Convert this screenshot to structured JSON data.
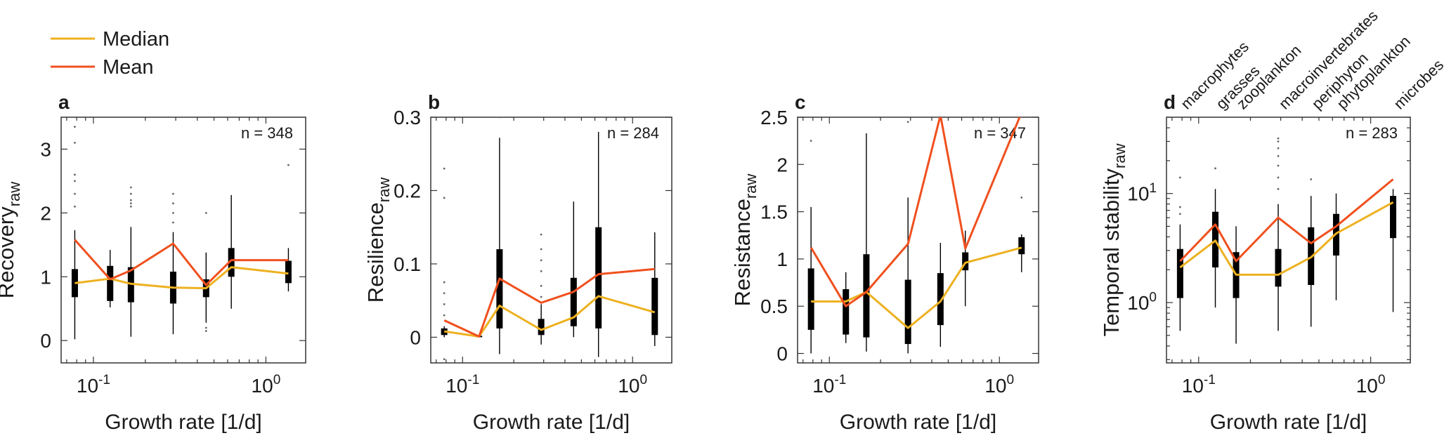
{
  "colors": {
    "median": "#EDB120",
    "mean": "#F0501E",
    "box": "#000000",
    "outlier": "#666666",
    "axis": "#333333"
  },
  "legend": {
    "median_label": "Median",
    "mean_label": "Mean"
  },
  "category_labels": [
    "macrophytes",
    "grasses",
    "zooplankton",
    "macroinvertebrates",
    "periphyton",
    "phytoplankton",
    "microbes"
  ],
  "chart_data": [
    {
      "type": "box",
      "panel_label": "a",
      "n_text": "n = 348",
      "xlabel": "Growth rate [1/d]",
      "ylabel_main": "Recovery",
      "ylabel_sub": "raw",
      "xscale": "log",
      "xlim": [
        0.065,
        1.7
      ],
      "xticks": [
        {
          "v": 0.1,
          "base": "10",
          "exp": "-1"
        },
        {
          "v": 1,
          "base": "10",
          "exp": "0"
        }
      ],
      "yscale": "linear",
      "ylim": [
        -0.35,
        3.5
      ],
      "yticks": [
        {
          "v": 0,
          "label": "0"
        },
        {
          "v": 1,
          "label": "1"
        },
        {
          "v": 2,
          "label": "2"
        },
        {
          "v": 3,
          "label": "3"
        }
      ],
      "x": [
        0.078,
        0.125,
        0.165,
        0.29,
        0.45,
        0.63,
        1.35
      ],
      "boxes": [
        {
          "x": 0.078,
          "q1": 0.68,
          "q3": 1.12,
          "wlo": 0.02,
          "whi": 1.73,
          "out": [
            2.1,
            2.3,
            2.5,
            2.6,
            3.1,
            3.35
          ]
        },
        {
          "x": 0.125,
          "q1": 0.62,
          "q3": 1.17,
          "wlo": 0.52,
          "whi": 1.42,
          "out": []
        },
        {
          "x": 0.165,
          "q1": 0.6,
          "q3": 1.15,
          "wlo": 0.06,
          "whi": 1.78,
          "out": [
            2.1,
            2.15,
            2.2,
            2.3,
            2.4
          ]
        },
        {
          "x": 0.29,
          "q1": 0.58,
          "q3": 1.08,
          "wlo": 0.1,
          "whi": 1.7,
          "out": [
            1.85,
            2.0,
            2.15,
            2.3
          ]
        },
        {
          "x": 0.45,
          "q1": 0.68,
          "q3": 0.96,
          "wlo": 0.28,
          "whi": 1.38,
          "out": [
            0.15,
            0.2,
            2.0
          ]
        },
        {
          "x": 0.63,
          "q1": 1.0,
          "q3": 1.45,
          "wlo": 0.5,
          "whi": 2.28,
          "out": []
        },
        {
          "x": 1.35,
          "q1": 0.9,
          "q3": 1.25,
          "wlo": 0.77,
          "whi": 1.45,
          "out": [
            2.75
          ]
        }
      ],
      "series": [
        {
          "name": "Median",
          "values": [
            0.9,
            0.97,
            0.89,
            0.83,
            0.82,
            1.15,
            1.05
          ]
        },
        {
          "name": "Mean",
          "values": [
            1.58,
            0.96,
            1.1,
            1.52,
            0.87,
            1.26,
            1.26
          ]
        }
      ]
    },
    {
      "type": "box",
      "panel_label": "b",
      "n_text": "n = 284",
      "xlabel": "Growth rate [1/d]",
      "ylabel_main": "Resilience",
      "ylabel_sub": "raw",
      "xscale": "log",
      "xlim": [
        0.065,
        1.7
      ],
      "xticks": [
        {
          "v": 0.1,
          "base": "10",
          "exp": "-1"
        },
        {
          "v": 1,
          "base": "10",
          "exp": "0"
        }
      ],
      "yscale": "linear",
      "ylim": [
        -0.035,
        0.3
      ],
      "yticks": [
        {
          "v": 0,
          "label": "0"
        },
        {
          "v": 0.1,
          "label": "0.1"
        },
        {
          "v": 0.2,
          "label": "0.2"
        },
        {
          "v": 0.3,
          "label": "0.3"
        }
      ],
      "x": [
        0.078,
        0.125,
        0.165,
        0.29,
        0.45,
        0.63,
        1.35
      ],
      "boxes": [
        {
          "x": 0.078,
          "q1": 0.003,
          "q3": 0.012,
          "wlo": 0.0,
          "whi": 0.015,
          "out": [
            -0.03,
            0.03,
            0.045,
            0.06,
            0.075,
            0.19,
            0.23
          ]
        },
        {
          "x": 0.125,
          "q1": 0.0,
          "q3": 0.002,
          "wlo": 0.0,
          "whi": 0.003,
          "out": []
        },
        {
          "x": 0.165,
          "q1": 0.012,
          "q3": 0.12,
          "wlo": -0.023,
          "whi": 0.272,
          "out": [
            0.3
          ]
        },
        {
          "x": 0.29,
          "q1": 0.003,
          "q3": 0.025,
          "wlo": -0.01,
          "whi": 0.045,
          "out": [
            0.055,
            0.07,
            0.09,
            0.105,
            0.12,
            0.14
          ]
        },
        {
          "x": 0.45,
          "q1": 0.015,
          "q3": 0.081,
          "wlo": 0.0,
          "whi": 0.185,
          "out": []
        },
        {
          "x": 0.63,
          "q1": 0.012,
          "q3": 0.15,
          "wlo": -0.027,
          "whi": 0.28,
          "out": []
        },
        {
          "x": 1.35,
          "q1": 0.003,
          "q3": 0.081,
          "wlo": -0.012,
          "whi": 0.143,
          "out": []
        }
      ],
      "series": [
        {
          "name": "Median",
          "values": [
            0.008,
            0.001,
            0.043,
            0.01,
            0.027,
            0.056,
            0.034
          ]
        },
        {
          "name": "Mean",
          "values": [
            0.023,
            0.001,
            0.08,
            0.047,
            0.062,
            0.086,
            0.093
          ]
        }
      ]
    },
    {
      "type": "box",
      "panel_label": "c",
      "n_text": "n = 347",
      "xlabel": "Growth rate [1/d]",
      "ylabel_main": "Resistance",
      "ylabel_sub": "raw",
      "xscale": "log",
      "xlim": [
        0.065,
        1.7
      ],
      "xticks": [
        {
          "v": 0.1,
          "base": "10",
          "exp": "-1"
        },
        {
          "v": 1,
          "base": "10",
          "exp": "0"
        }
      ],
      "yscale": "linear",
      "ylim": [
        -0.1,
        2.5
      ],
      "yticks": [
        {
          "v": 0,
          "label": "0"
        },
        {
          "v": 0.5,
          "label": "0.5"
        },
        {
          "v": 1,
          "label": "1"
        },
        {
          "v": 1.5,
          "label": "1.5"
        },
        {
          "v": 2,
          "label": "2"
        },
        {
          "v": 2.5,
          "label": "2.5"
        }
      ],
      "x": [
        0.078,
        0.125,
        0.165,
        0.29,
        0.45,
        0.63,
        1.35
      ],
      "boxes": [
        {
          "x": 0.078,
          "q1": 0.25,
          "q3": 0.9,
          "wlo": 0.0,
          "whi": 1.55,
          "out": [
            2.25
          ]
        },
        {
          "x": 0.125,
          "q1": 0.2,
          "q3": 0.68,
          "wlo": 0.11,
          "whi": 0.86,
          "out": []
        },
        {
          "x": 0.165,
          "q1": 0.17,
          "q3": 1.05,
          "wlo": 0.02,
          "whi": 2.33,
          "out": []
        },
        {
          "x": 0.29,
          "q1": 0.1,
          "q3": 0.78,
          "wlo": 0.0,
          "whi": 1.65,
          "out": [
            2.45
          ]
        },
        {
          "x": 0.45,
          "q1": 0.3,
          "q3": 0.85,
          "wlo": 0.07,
          "whi": 1.17,
          "out": []
        },
        {
          "x": 0.63,
          "q1": 0.88,
          "q3": 1.07,
          "wlo": 0.5,
          "whi": 1.3,
          "out": []
        },
        {
          "x": 1.35,
          "q1": 1.05,
          "q3": 1.23,
          "wlo": 0.86,
          "whi": 1.26,
          "out": [
            1.65
          ]
        }
      ],
      "series": [
        {
          "name": "Median",
          "values": [
            0.55,
            0.55,
            0.65,
            0.27,
            0.55,
            0.96,
            1.12
          ]
        },
        {
          "name": "Mean",
          "values": [
            1.12,
            0.5,
            0.65,
            1.16,
            2.52,
            1.11,
            2.55
          ]
        }
      ]
    },
    {
      "type": "box",
      "panel_label": "d",
      "n_text": "n = 283",
      "xlabel": "Growth rate [1/d]",
      "ylabel_main": "Temporal stability",
      "ylabel_sub": "raw",
      "xscale": "log",
      "xlim": [
        0.065,
        1.7
      ],
      "xticks": [
        {
          "v": 0.1,
          "base": "10",
          "exp": "-1"
        },
        {
          "v": 1,
          "base": "10",
          "exp": "0"
        }
      ],
      "yscale": "log",
      "ylim": [
        0.28,
        50
      ],
      "yticks": [
        {
          "v": 1,
          "base": "10",
          "exp": "0"
        },
        {
          "v": 10,
          "base": "10",
          "exp": "1"
        }
      ],
      "x": [
        0.078,
        0.125,
        0.165,
        0.29,
        0.45,
        0.63,
        1.35
      ],
      "boxes": [
        {
          "x": 0.078,
          "q1": 1.1,
          "q3": 3.1,
          "wlo": 0.55,
          "whi": 5.2,
          "out": [
            6.5,
            7.5,
            14
          ]
        },
        {
          "x": 0.125,
          "q1": 2.1,
          "q3": 6.8,
          "wlo": 0.9,
          "whi": 11,
          "out": [
            17
          ]
        },
        {
          "x": 0.165,
          "q1": 1.1,
          "q3": 2.9,
          "wlo": 0.42,
          "whi": 5,
          "out": []
        },
        {
          "x": 0.29,
          "q1": 1.4,
          "q3": 3.1,
          "wlo": 0.55,
          "whi": 8,
          "out": [
            11,
            14,
            18,
            22,
            26,
            30,
            32
          ]
        },
        {
          "x": 0.45,
          "q1": 1.45,
          "q3": 4.9,
          "wlo": 0.6,
          "whi": 9.5,
          "out": [
            13.5
          ]
        },
        {
          "x": 0.63,
          "q1": 2.7,
          "q3": 6.5,
          "wlo": 1.05,
          "whi": 10,
          "out": []
        },
        {
          "x": 1.35,
          "q1": 3.9,
          "q3": 9.5,
          "wlo": 0.82,
          "whi": 11,
          "out": []
        }
      ],
      "series": [
        {
          "name": "Median",
          "values": [
            2.1,
            3.7,
            1.8,
            1.8,
            2.6,
            4.3,
            8.3
          ]
        },
        {
          "name": "Mean",
          "values": [
            2.4,
            5.2,
            2.4,
            6.0,
            3.5,
            5.0,
            13.5
          ]
        }
      ]
    }
  ]
}
